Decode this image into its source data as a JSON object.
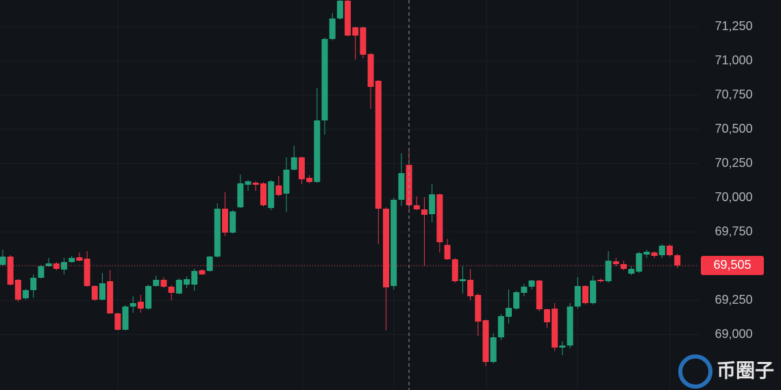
{
  "chart_data": {
    "type": "candlestick",
    "up_color": "#22a07a",
    "down_color": "#f23645",
    "ylim": [
      68595,
      71445
    ],
    "yticks": [
      {
        "value": 69000,
        "label": "69,000"
      },
      {
        "value": 69250,
        "label": "69,250"
      },
      {
        "value": 69500,
        "label": "69,500"
      },
      {
        "value": 69750,
        "label": "69,750"
      },
      {
        "value": 70000,
        "label": "70,000"
      },
      {
        "value": 70250,
        "label": "70,250"
      },
      {
        "value": 70500,
        "label": "70,500"
      },
      {
        "value": 70750,
        "label": "70,750"
      },
      {
        "value": 71000,
        "label": "71,000"
      },
      {
        "value": 71250,
        "label": "71,250"
      }
    ],
    "grid": true,
    "current_price": {
      "value": 69505,
      "label": "69,505"
    },
    "watermark": "币圈子",
    "open": [
      69510,
      69570,
      69400,
      69265,
      69325,
      69415,
      69500,
      69520,
      69475,
      69530,
      69565,
      69555,
      69355,
      69255,
      69390,
      69155,
      69035,
      69205,
      69240,
      69190,
      69355,
      69400,
      69350,
      69300,
      69365,
      69365,
      69470,
      69465,
      69570,
      69920,
      69745,
      69930,
      70095,
      70110,
      70105,
      69925,
      70090,
      70030,
      70205,
      70295,
      70145,
      70115,
      70565,
      71160,
      71310,
      71440,
      71245,
      71245,
      71050,
      70855,
      69920,
      69355,
      69985,
      70240,
      69945,
      69915,
      69880,
      70025,
      69655,
      69550,
      69390,
      69400,
      69290,
      69105,
      68800,
      68980,
      69130,
      69190,
      69305,
      69350,
      69395,
      69185,
      69190,
      68905,
      68920,
      69205,
      69355,
      69230,
      69400,
      69390,
      69535,
      69515,
      69445,
      69460,
      69585,
      69600,
      69580,
      69650,
      69580
    ],
    "high": [
      69620,
      69580,
      69405,
      69335,
      69440,
      69510,
      69560,
      69530,
      69560,
      69575,
      69600,
      69610,
      69360,
      69450,
      69470,
      69160,
      69215,
      69280,
      69290,
      69365,
      69430,
      69420,
      69360,
      69410,
      69425,
      69480,
      69480,
      69575,
      69960,
      70040,
      69910,
      70170,
      70130,
      70120,
      70115,
      70130,
      70160,
      70295,
      70380,
      70300,
      70165,
      70800,
      71170,
      71350,
      71445,
      71445,
      71250,
      71250,
      71060,
      70860,
      69930,
      70000,
      70325,
      70365,
      70010,
      70005,
      70100,
      70030,
      69700,
      69560,
      69500,
      69480,
      69300,
      69110,
      69010,
      69150,
      69330,
      69320,
      69370,
      69400,
      69400,
      69190,
      69230,
      68950,
      69230,
      69420,
      69360,
      69430,
      69410,
      69610,
      69560,
      69540,
      69500,
      69605,
      69620,
      69610,
      69660,
      69660,
      69590
    ],
    "low": [
      69500,
      69360,
      69240,
      69255,
      69270,
      69410,
      69495,
      69470,
      69440,
      69525,
      69535,
      69350,
      69245,
      69250,
      69150,
      69030,
      69030,
      69160,
      69160,
      69180,
      69350,
      69340,
      69250,
      69295,
      69340,
      69320,
      69435,
      69460,
      69560,
      69720,
      69740,
      69925,
      70050,
      70050,
      69935,
      69910,
      70010,
      69895,
      70200,
      70100,
      70105,
      70110,
      70460,
      71150,
      71300,
      71180,
      71010,
      71020,
      70650,
      69660,
      69030,
      69330,
      69940,
      69900,
      69910,
      69505,
      69820,
      69600,
      69545,
      69380,
      69300,
      69250,
      68990,
      68770,
      68790,
      68960,
      69080,
      69180,
      69280,
      69330,
      69170,
      69050,
      68880,
      68850,
      68900,
      69190,
      69220,
      69220,
      69380,
      69380,
      69500,
      69470,
      69435,
      69450,
      69560,
      69560,
      69560,
      69570,
      69485
    ],
    "close": [
      69570,
      69365,
      69255,
      69325,
      69415,
      69500,
      69520,
      69480,
      69530,
      69560,
      69540,
      69355,
      69255,
      69375,
      69155,
      69035,
      69205,
      69230,
      69190,
      69355,
      69400,
      69350,
      69305,
      69400,
      69405,
      69465,
      69440,
      69570,
      69920,
      69745,
      69900,
      70105,
      70120,
      70095,
      69945,
      70120,
      70020,
      70205,
      70295,
      70135,
      70115,
      70565,
      71160,
      71310,
      71440,
      71185,
      71185,
      71045,
      70810,
      69920,
      69345,
      69985,
      70180,
      69945,
      69915,
      69875,
      70025,
      69675,
      69550,
      69390,
      69405,
      69280,
      69095,
      68800,
      68980,
      69135,
      69195,
      69310,
      69350,
      69395,
      69185,
      69090,
      68905,
      68920,
      69205,
      69355,
      69230,
      69395,
      69390,
      69540,
      69515,
      69480,
      69480,
      69595,
      69605,
      69575,
      69650,
      69580,
      69505
    ]
  }
}
